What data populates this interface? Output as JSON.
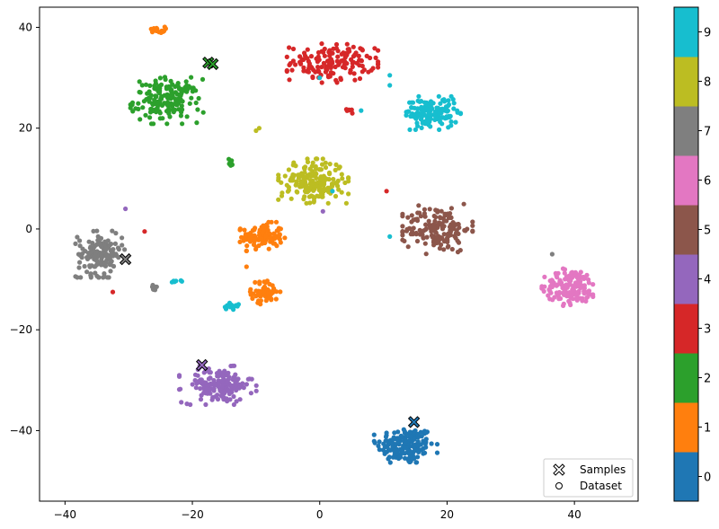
{
  "chart_data": {
    "type": "scatter",
    "title": "",
    "xlabel": "",
    "ylabel": "",
    "xlim": [
      -44,
      50
    ],
    "ylim": [
      -54,
      44
    ],
    "x_ticks": [
      -40,
      -20,
      0,
      20,
      40
    ],
    "y_ticks": [
      -40,
      -20,
      0,
      20,
      40
    ],
    "x_tick_labels": [
      "−40",
      "−20",
      "0",
      "20",
      "40"
    ],
    "y_tick_labels": [
      "−40",
      "−20",
      "0",
      "20",
      "40"
    ],
    "grid": false,
    "colorbar": {
      "labels": [
        "0",
        "1",
        "2",
        "3",
        "4",
        "5",
        "6",
        "7",
        "8",
        "9"
      ],
      "colors": [
        "#1f77b4",
        "#ff7f0e",
        "#2ca02c",
        "#d62728",
        "#9467bd",
        "#8c564b",
        "#e377c2",
        "#7f7f7f",
        "#bcbd22",
        "#17becf"
      ]
    },
    "legend": {
      "position": "lower-right",
      "entries": [
        {
          "label": "Samples",
          "marker": "X"
        },
        {
          "label": "Dataset",
          "marker": "o"
        }
      ]
    },
    "clusters": [
      {
        "label": 0,
        "center": [
          13.5,
          -43
        ],
        "spread": [
          4.5,
          3.8
        ],
        "n": 170
      },
      {
        "label": 1,
        "center": [
          -9,
          -1.5
        ],
        "spread": [
          3.2,
          2.6
        ],
        "n": 110
      },
      {
        "label": 1,
        "center": [
          -8.5,
          -12.5
        ],
        "spread": [
          2.2,
          2.2
        ],
        "n": 60
      },
      {
        "label": 1,
        "center": [
          -25.5,
          39.5
        ],
        "spread": [
          1.2,
          0.6
        ],
        "n": 15
      },
      {
        "label": 2,
        "center": [
          -24,
          25.5
        ],
        "spread": [
          5.2,
          4.2
        ],
        "n": 170
      },
      {
        "label": 2,
        "center": [
          -14,
          13.2
        ],
        "spread": [
          0.3,
          0.8
        ],
        "n": 10
      },
      {
        "label": 3,
        "center": [
          2,
          33
        ],
        "spread": [
          6.5,
          3.6
        ],
        "n": 150
      },
      {
        "label": 3,
        "center": [
          4.5,
          23.5
        ],
        "spread": [
          0.9,
          0.5
        ],
        "n": 8
      },
      {
        "label": 4,
        "center": [
          -16,
          -31
        ],
        "spread": [
          5.5,
          3.5
        ],
        "n": 160
      },
      {
        "label": 5,
        "center": [
          18.5,
          0
        ],
        "spread": [
          5,
          4.5
        ],
        "n": 160
      },
      {
        "label": 6,
        "center": [
          39.5,
          -11.5
        ],
        "spread": [
          4.2,
          3.5
        ],
        "n": 160
      },
      {
        "label": 7,
        "center": [
          -34.5,
          -5
        ],
        "spread": [
          3.5,
          4.2
        ],
        "n": 140
      },
      {
        "label": 7,
        "center": [
          -26,
          -12
        ],
        "spread": [
          0.4,
          0.8
        ],
        "n": 8
      },
      {
        "label": 8,
        "center": [
          -1,
          9.5
        ],
        "spread": [
          5,
          4
        ],
        "n": 200
      },
      {
        "label": 9,
        "center": [
          17.5,
          23
        ],
        "spread": [
          4.2,
          3
        ],
        "n": 150
      },
      {
        "label": 9,
        "center": [
          -14,
          -15.3
        ],
        "spread": [
          1.3,
          0.7
        ],
        "n": 15
      },
      {
        "label": 9,
        "center": [
          -22.5,
          -10.3
        ],
        "spread": [
          0.8,
          0.3
        ],
        "n": 6
      }
    ],
    "outliers": [
      {
        "label": 9,
        "x": 11,
        "y": 30.5
      },
      {
        "label": 9,
        "x": 11,
        "y": 28.5
      },
      {
        "label": 9,
        "x": 0,
        "y": 30
      },
      {
        "label": 9,
        "x": 6.5,
        "y": 23.5
      },
      {
        "label": 9,
        "x": 2,
        "y": 7.5
      },
      {
        "label": 9,
        "x": 11,
        "y": -1.5
      },
      {
        "label": 3,
        "x": 10.5,
        "y": 7.5
      },
      {
        "label": 3,
        "x": -27.5,
        "y": -0.5
      },
      {
        "label": 3,
        "x": -32.5,
        "y": -12.5
      },
      {
        "label": 4,
        "x": -30.5,
        "y": 4
      },
      {
        "label": 4,
        "x": 0.5,
        "y": 3.5
      },
      {
        "label": 8,
        "x": -9.5,
        "y": 20
      },
      {
        "label": 8,
        "x": -10,
        "y": 19.5
      },
      {
        "label": 7,
        "x": 36.5,
        "y": -5
      },
      {
        "label": 1,
        "x": -11.5,
        "y": -7.5
      }
    ],
    "samples": [
      {
        "label": 2,
        "x": -17.5,
        "y": 33
      },
      {
        "label": 2,
        "x": -16.8,
        "y": 32.7
      },
      {
        "label": 7,
        "x": -30.5,
        "y": -6
      },
      {
        "label": 4,
        "x": -18.5,
        "y": -27
      },
      {
        "label": 0,
        "x": 14.8,
        "y": -38.3
      }
    ]
  }
}
